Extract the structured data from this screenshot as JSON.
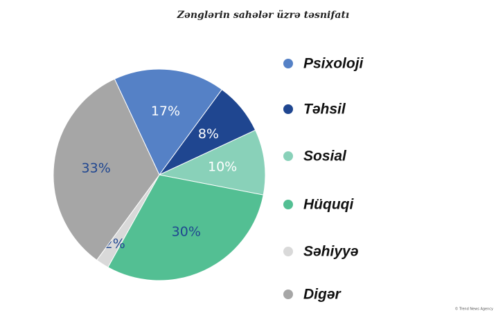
{
  "chart_data": {
    "type": "pie",
    "title": "Zənglərin sahələr üzrə təsnifatı",
    "categories": [
      "Psixoloji",
      "Təhsil",
      "Sosial",
      "Hüquqi",
      "Səhiyyə",
      "Digər"
    ],
    "values": [
      17,
      8,
      10,
      30,
      2,
      33
    ],
    "value_labels": [
      "17%",
      "8%",
      "10%",
      "30%",
      "2%",
      "33%"
    ],
    "colors": [
      "#5581c6",
      "#1f4690",
      "#89d1b9",
      "#53bf93",
      "#d9d9d9",
      "#a6a6a6"
    ],
    "value_label_colors": [
      "#ffffff",
      "#ffffff",
      "#ffffff",
      "#1f4690",
      "#1f4690",
      "#1f4690"
    ],
    "legend": "right",
    "credit": "© Trend News Agency"
  }
}
